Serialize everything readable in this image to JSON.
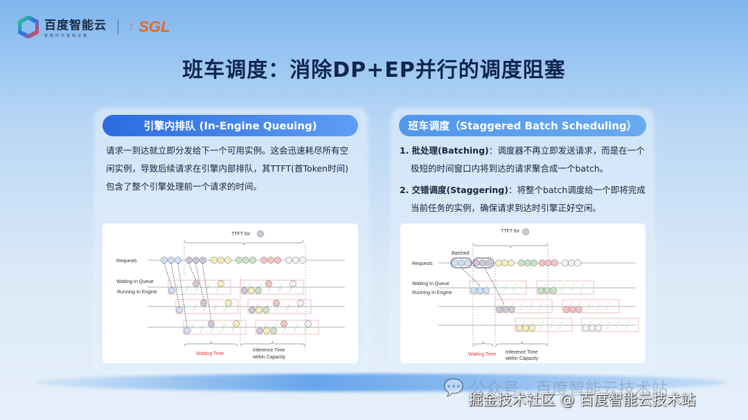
{
  "header": {
    "brand": "百度智能云",
    "brand_sub": "智能时代基础设施",
    "partner": "SGL"
  },
  "title": "班车调度：消除DP+EP并行的调度阻塞",
  "left": {
    "heading": "引擎内排队 (In-Engine Queuing)",
    "text": "请求一到达就立即分发给下一个可用实例。这会迅速耗尽所有空闲实例，导致后续请求在引擎内部排队，其TTFT(首Token时间)包含了整个引擎处理前一个请求的时间。",
    "diagram": {
      "ttft": "TTFT for",
      "requests": "Requests",
      "waiting_queue": "Waiting In Queue",
      "running_engine": "Running In Engine",
      "waiting_time": "Waiting Time",
      "inference1": "Inference Time",
      "inference2": "within Capacity"
    }
  },
  "right": {
    "heading": "班车调度（Staggered Batch Scheduling）",
    "items": [
      {
        "num": "1.",
        "bold": "批处理(Batching)",
        "text": "：调度器不再立即发送请求，而是在一个极短的时间窗口内将到达的请求聚合成一个batch。"
      },
      {
        "num": "2.",
        "bold": "交错调度(Staggering)",
        "text": "：将整个batch调度给一个即将完成当前任务的实例，确保请求到达时引擎正好空闲。"
      }
    ],
    "diagram": {
      "ttft": "TTFT for",
      "batched": "Batched",
      "requests": "Requests",
      "waiting_queue": "Waiting In Queue",
      "running_engine": "Running In Engine",
      "waiting_time": "Waiting Time",
      "inference1": "Inference Time",
      "inference2": "within Capacity"
    }
  },
  "watermark": {
    "wechat": "公众号 · 百度智能云技术站",
    "site": "掘金技术社区 @ 百度智能云技术站"
  },
  "colors": {
    "blue": "#cfe0f7",
    "purple": "#cfc6d8",
    "yellow": "#f7efb8",
    "green": "#c9e3c6",
    "red": "#f6c2c2",
    "white": "#f4f4f4",
    "title": "#0f2550",
    "waiting": "#e0353a"
  }
}
